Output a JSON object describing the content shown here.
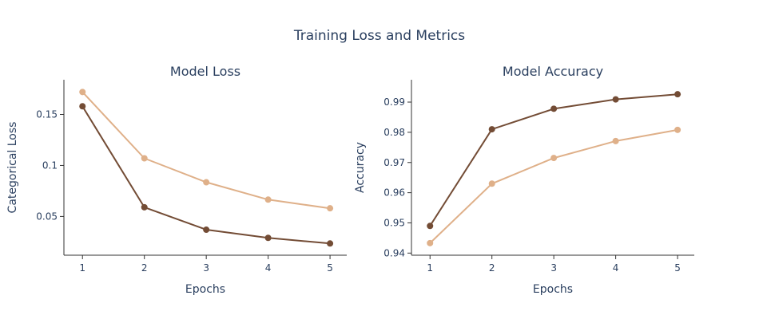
{
  "figure": {
    "title": "Training Loss and Metrics"
  },
  "colors": {
    "series_dark": "#734c35",
    "series_light": "#dfb089"
  },
  "chart_data": [
    {
      "type": "line",
      "title": "Model Loss",
      "xlabel": "Epochs",
      "ylabel": "Categorical Loss",
      "x": [
        1,
        2,
        3,
        4,
        5
      ],
      "x_tick_labels": [
        "1",
        "2",
        "3",
        "4",
        "5"
      ],
      "xlim": [
        0.7,
        5.27
      ],
      "ylim": [
        0.012,
        0.184
      ],
      "y_ticks": [
        0.05,
        0.1,
        0.15
      ],
      "y_tick_labels": [
        "0.05",
        "0.1",
        "0.15"
      ],
      "series": [
        {
          "name": "series_light",
          "color": "#dfb089",
          "values": [
            0.172,
            0.107,
            0.0835,
            0.0665,
            0.058
          ]
        },
        {
          "name": "series_dark",
          "color": "#734c35",
          "values": [
            0.158,
            0.059,
            0.037,
            0.029,
            0.0235
          ]
        }
      ]
    },
    {
      "type": "line",
      "title": "Model Accuracy",
      "xlabel": "Epochs",
      "ylabel": "Accuracy",
      "x": [
        1,
        2,
        3,
        4,
        5
      ],
      "x_tick_labels": [
        "1",
        "2",
        "3",
        "4",
        "5"
      ],
      "xlim": [
        0.7,
        5.27
      ],
      "ylim": [
        0.9393,
        0.9974
      ],
      "y_ticks": [
        0.94,
        0.95,
        0.96,
        0.97,
        0.98,
        0.99
      ],
      "y_tick_labels": [
        "0.94",
        "0.95",
        "0.96",
        "0.97",
        "0.98",
        "0.99"
      ],
      "series": [
        {
          "name": "series_light",
          "color": "#dfb089",
          "values": [
            0.9433,
            0.963,
            0.9715,
            0.9771,
            0.9808
          ]
        },
        {
          "name": "series_dark",
          "color": "#734c35",
          "values": [
            0.949,
            0.981,
            0.9878,
            0.9909,
            0.9926
          ]
        }
      ]
    }
  ]
}
